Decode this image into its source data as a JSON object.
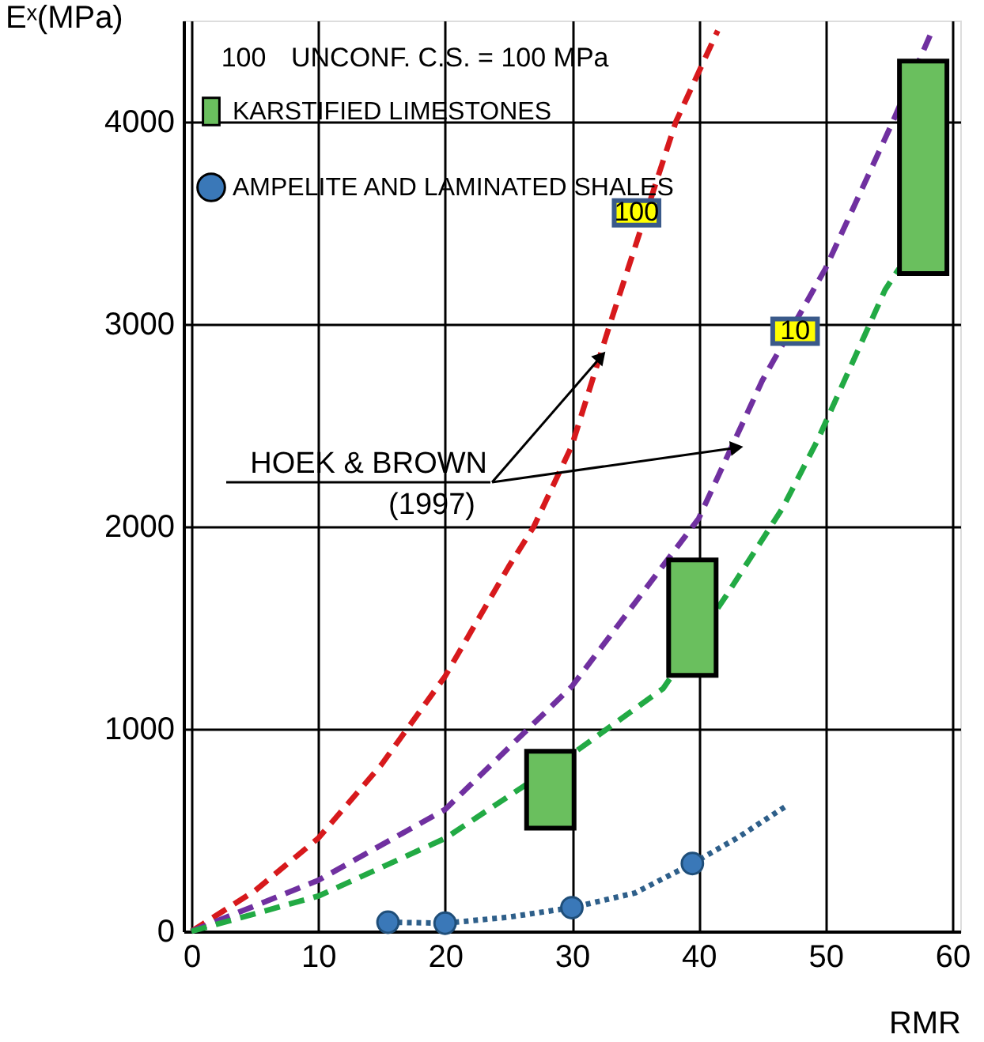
{
  "chart_data": {
    "type": "line",
    "xlabel": "RMR",
    "ylabel": "Eˣ(MPa)",
    "xlim": [
      0,
      60
    ],
    "xticks": [
      0,
      10,
      20,
      30,
      40,
      50,
      60
    ],
    "ylim": [
      0,
      4500
    ],
    "yticks": [
      0,
      1000,
      2000,
      3000,
      4000
    ],
    "grid": true,
    "legend": "top left",
    "series": [
      {
        "color": "#d7191c",
        "line_style": "dashed",
        "x": [
          0,
          5,
          10,
          15,
          20,
          25,
          27,
          30,
          33,
          38.2,
          41.5
        ],
        "values": [
          0,
          200,
          460,
          825,
          1260,
          1800,
          2000,
          2400,
          3000,
          4000,
          4450
        ]
      },
      {
        "color": "#7030a0",
        "line_style": "dashed",
        "x": [
          0,
          10,
          20,
          30,
          40,
          45,
          50,
          55.3,
          58.4
        ],
        "values": [
          0,
          252,
          602,
          1210,
          2040,
          2720,
          3275,
          4000,
          4450
        ]
      },
      {
        "color": "#22aa44",
        "line_style": "dashed",
        "x": [
          0,
          10,
          20,
          30,
          37.2,
          42.1,
          46.6,
          49.4,
          54.7,
          55.8
        ],
        "values": [
          0,
          174,
          459,
          875,
          1200,
          1652,
          2090,
          2430,
          3170,
          3275
        ]
      },
      {
        "color": "#2e5f8a",
        "line_style": "dotted",
        "x": [
          15.5,
          20,
          25,
          30,
          35,
          39.5,
          43,
          46.8
        ],
        "values": [
          45,
          40,
          70,
          117,
          190,
          335,
          460,
          615
        ]
      },
      {
        "type": "bar",
        "name": "KARSTIFIED LIMESTONES",
        "color": "#6abf5e",
        "x": [
          28.3,
          39.5,
          57.7
        ],
        "base": [
          510,
          1265,
          3250
        ],
        "values": [
          380,
          570,
          1050
        ]
      },
      {
        "type": "scatter",
        "name": "AMPELITE AND LAMINATED SHALES",
        "color": "#3a78b8",
        "marker": "circle",
        "x": [
          15.5,
          20,
          30,
          39.5
        ],
        "values": [
          45,
          40,
          117,
          335
        ]
      }
    ],
    "annotations": [
      "100",
      "UNCONF. C.S. = 100 MPa",
      {
        "text": "100",
        "x": 35.1,
        "y": 3550
      },
      {
        "text": "10",
        "x": 47.6,
        "y": 2965
      },
      {
        "text": "HOEK & BROWN",
        "x": 32.3,
        "y": 2840
      },
      {
        "text": "(1997)",
        "x": 43,
        "y": 2390
      }
    ]
  }
}
